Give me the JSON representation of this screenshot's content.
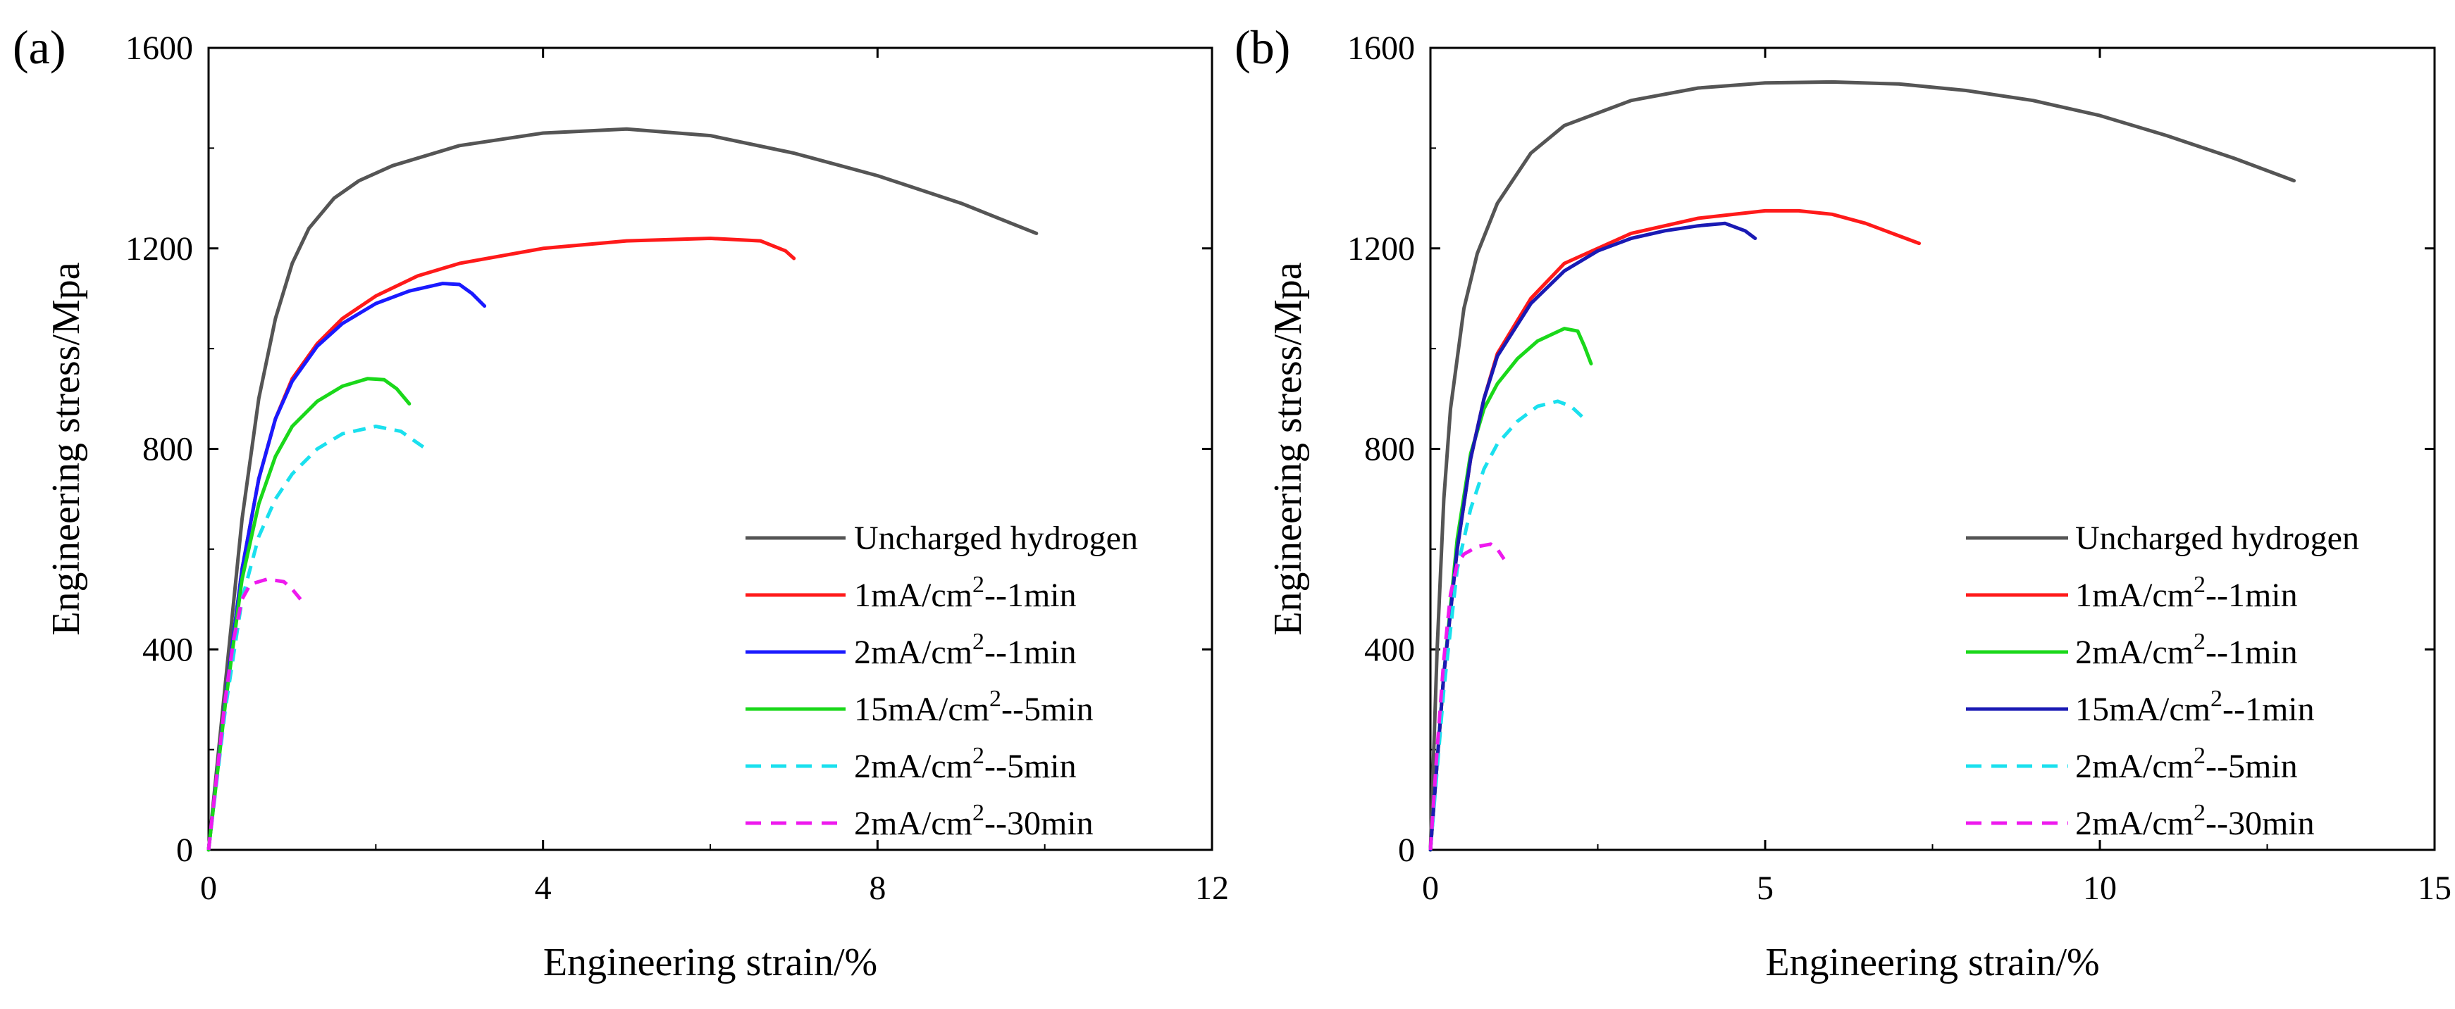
{
  "chart_data": [
    {
      "type": "line",
      "panel_label": "(a)",
      "xlabel": "Engineering strain/%",
      "ylabel": "Engineering stress/Mpa",
      "xlim": [
        0,
        12
      ],
      "ylim": [
        0,
        1600
      ],
      "xticks": [
        0,
        4,
        8,
        12
      ],
      "yticks": [
        0,
        400,
        800,
        1200,
        1600
      ],
      "xtick_labels": [
        "0",
        "4",
        "8",
        "12"
      ],
      "ytick_labels": [
        "0",
        "400",
        "800",
        "1200",
        "1600"
      ],
      "legend_position": "bottom-right",
      "series": [
        {
          "name": "Uncharged hydrogen",
          "label_main": "Uncharged hydrogen",
          "label_sup": "",
          "label_tail": "",
          "color": "#555555",
          "dash": "solid",
          "x": [
            0,
            0.2,
            0.4,
            0.6,
            0.8,
            1.0,
            1.2,
            1.5,
            1.8,
            2.2,
            3.0,
            4.0,
            5.0,
            6.0,
            7.0,
            8.0,
            9.0,
            9.9
          ],
          "y": [
            0,
            330,
            660,
            900,
            1060,
            1170,
            1240,
            1300,
            1335,
            1365,
            1405,
            1430,
            1438,
            1425,
            1390,
            1345,
            1290,
            1230
          ]
        },
        {
          "name": "1mA/cm2--1min",
          "label_main": "1mA/cm",
          "label_sup": "2",
          "label_tail": "--1min",
          "color": "#ff1a1a",
          "dash": "solid",
          "x": [
            0,
            0.2,
            0.4,
            0.6,
            0.8,
            1.0,
            1.3,
            1.6,
            2.0,
            2.5,
            3.0,
            4.0,
            5.0,
            6.0,
            6.6,
            6.9,
            7.0
          ],
          "y": [
            0,
            300,
            560,
            740,
            860,
            940,
            1010,
            1060,
            1105,
            1145,
            1170,
            1200,
            1215,
            1220,
            1215,
            1195,
            1180
          ]
        },
        {
          "name": "2mA/cm2--1min",
          "label_main": "2mA/cm",
          "label_sup": "2",
          "label_tail": "--1min",
          "color": "#1a1aff",
          "dash": "solid",
          "x": [
            0,
            0.2,
            0.4,
            0.6,
            0.8,
            1.0,
            1.3,
            1.6,
            2.0,
            2.4,
            2.8,
            3.0,
            3.15,
            3.3
          ],
          "y": [
            0,
            300,
            560,
            740,
            860,
            935,
            1005,
            1050,
            1090,
            1115,
            1130,
            1128,
            1110,
            1085
          ]
        },
        {
          "name": "15mA/cm2--5min",
          "label_main": "15mA/cm",
          "label_sup": "2",
          "label_tail": "--5min",
          "color": "#1ad81a",
          "dash": "solid",
          "x": [
            0,
            0.2,
            0.4,
            0.6,
            0.8,
            1.0,
            1.3,
            1.6,
            1.9,
            2.1,
            2.25,
            2.4
          ],
          "y": [
            0,
            290,
            540,
            690,
            785,
            845,
            895,
            925,
            940,
            938,
            920,
            890
          ]
        },
        {
          "name": "2mA/cm2--5min",
          "label_main": "2mA/cm",
          "label_sup": "2",
          "label_tail": "--5min",
          "color": "#1ae0ee",
          "dash": "dashed",
          "x": [
            0,
            0.2,
            0.4,
            0.6,
            0.8,
            1.0,
            1.3,
            1.6,
            2.0,
            2.3,
            2.6
          ],
          "y": [
            0,
            280,
            500,
            625,
            700,
            750,
            800,
            830,
            845,
            835,
            800
          ]
        },
        {
          "name": "2mA/cm2--30min",
          "label_main": "2mA/cm",
          "label_sup": "2",
          "label_tail": "--30min",
          "color": "#ee1aee",
          "dash": "dashed",
          "x": [
            0,
            0.1,
            0.2,
            0.3,
            0.4,
            0.5,
            0.7,
            0.9,
            1.0,
            1.1
          ],
          "y": [
            0,
            150,
            300,
            420,
            500,
            530,
            540,
            535,
            520,
            500
          ]
        }
      ]
    },
    {
      "type": "line",
      "panel_label": "(b)",
      "xlabel": "Engineering strain/%",
      "ylabel": "Engineering stress/Mpa",
      "xlim": [
        0,
        15
      ],
      "ylim": [
        0,
        1600
      ],
      "xticks": [
        0,
        5,
        10,
        15
      ],
      "yticks": [
        0,
        400,
        800,
        1200,
        1600
      ],
      "xtick_labels": [
        "0",
        "5",
        "10",
        "15"
      ],
      "ytick_labels": [
        "0",
        "400",
        "800",
        "1200",
        "1600"
      ],
      "legend_position": "bottom-right",
      "series": [
        {
          "name": "Uncharged hydrogen",
          "label_main": "Uncharged hydrogen",
          "label_sup": "",
          "label_tail": "",
          "color": "#555555",
          "dash": "solid",
          "x": [
            0,
            0.1,
            0.2,
            0.3,
            0.5,
            0.7,
            1.0,
            1.5,
            2.0,
            3.0,
            4.0,
            5.0,
            6.0,
            7.0,
            8.0,
            9.0,
            10.0,
            11.0,
            12.0,
            12.9
          ],
          "y": [
            0,
            400,
            700,
            880,
            1080,
            1190,
            1290,
            1390,
            1445,
            1495,
            1520,
            1530,
            1532,
            1528,
            1515,
            1495,
            1465,
            1425,
            1380,
            1335
          ]
        },
        {
          "name": "1mA/cm2--1min",
          "label_main": "1mA/cm",
          "label_sup": "2",
          "label_tail": "--1min",
          "color": "#ff1a1a",
          "dash": "solid",
          "x": [
            0,
            0.2,
            0.4,
            0.6,
            0.8,
            1.0,
            1.5,
            2.0,
            3.0,
            4.0,
            5.0,
            5.5,
            6.0,
            6.5,
            7.0,
            7.3
          ],
          "y": [
            0,
            350,
            600,
            780,
            900,
            990,
            1100,
            1170,
            1230,
            1260,
            1275,
            1275,
            1268,
            1250,
            1225,
            1210
          ]
        },
        {
          "name": "2mA/cm2--1min",
          "label_main": "2mA/cm",
          "label_sup": "2",
          "label_tail": "--1min",
          "color": "#1ad81a",
          "dash": "solid",
          "x": [
            0,
            0.2,
            0.4,
            0.6,
            0.8,
            1.0,
            1.3,
            1.6,
            2.0,
            2.2,
            2.3,
            2.4
          ],
          "y": [
            0,
            350,
            620,
            790,
            880,
            930,
            980,
            1015,
            1040,
            1035,
            1005,
            970
          ]
        },
        {
          "name": "15mA/cm2--1min",
          "label_main": "15mA/cm",
          "label_sup": "2",
          "label_tail": "--1min",
          "color": "#1a1ab4",
          "dash": "solid",
          "x": [
            0,
            0.2,
            0.4,
            0.6,
            0.8,
            1.0,
            1.5,
            2.0,
            2.5,
            3.0,
            3.5,
            4.0,
            4.4,
            4.7,
            4.85
          ],
          "y": [
            0,
            350,
            600,
            780,
            900,
            985,
            1090,
            1155,
            1195,
            1220,
            1235,
            1245,
            1250,
            1235,
            1220
          ]
        },
        {
          "name": "2mA/cm2--5min",
          "label_main": "2mA/cm",
          "label_sup": "2",
          "label_tail": "--5min",
          "color": "#1ae0ee",
          "dash": "dashed",
          "x": [
            0,
            0.2,
            0.4,
            0.6,
            0.8,
            1.0,
            1.3,
            1.6,
            1.9,
            2.1,
            2.3
          ],
          "y": [
            0,
            320,
            560,
            680,
            760,
            810,
            855,
            885,
            895,
            885,
            860
          ]
        },
        {
          "name": "2mA/cm2--30min",
          "label_main": "2mA/cm",
          "label_sup": "2",
          "label_tail": "--30min",
          "color": "#ee1aee",
          "dash": "dashed",
          "x": [
            0,
            0.1,
            0.2,
            0.3,
            0.4,
            0.5,
            0.7,
            0.9,
            1.0,
            1.1
          ],
          "y": [
            0,
            200,
            380,
            510,
            570,
            590,
            605,
            610,
            600,
            580
          ]
        }
      ]
    }
  ]
}
